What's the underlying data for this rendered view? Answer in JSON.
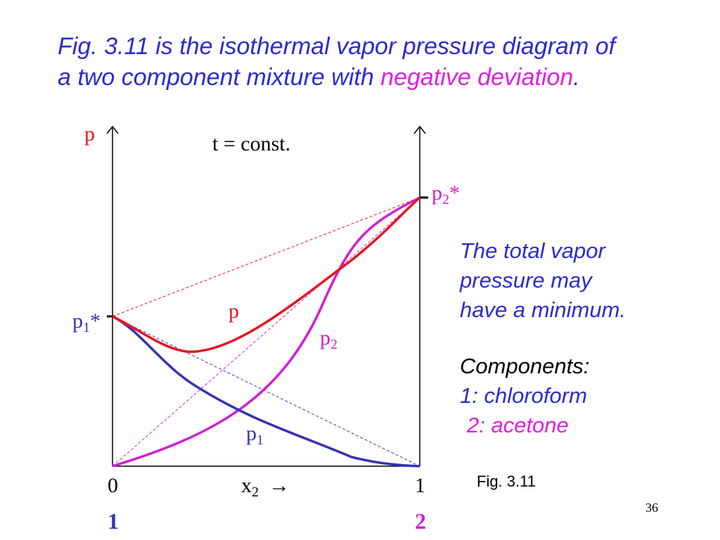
{
  "title": {
    "line1": "Fig. 3.11 is the isothermal vapor pressure diagram of",
    "line2_prefix": "a two component mixture with ",
    "line2_highlight": "negative deviation",
    "line2_suffix": "."
  },
  "diagram": {
    "y_axis_label": "p",
    "condition": "t = const.",
    "p1_star": "p",
    "p1_star_sub": "1",
    "p2_star": "p",
    "p2_star_sub": "2",
    "star": "*",
    "label_p": "p",
    "label_p2": "p",
    "label_p2_sub": "2",
    "label_p1": "p",
    "label_p1_sub": "1",
    "x_left": "0",
    "x_right": "1",
    "x_label": "x",
    "x_label_sub": "2",
    "x_arrow": "→",
    "comp_left": "1",
    "comp_right": "2",
    "colors": {
      "total": "#e8141e",
      "p1": "#3434b4",
      "p2": "#d21ed2"
    }
  },
  "side_note": {
    "line1": "The total vapor",
    "line2": "pressure may",
    "line3": "have a minimum."
  },
  "components": {
    "heading": "Components:",
    "c1": "1: chloroform",
    "c2": "2: acetone"
  },
  "fig_label": "Fig. 3.11",
  "page_number": "36"
}
